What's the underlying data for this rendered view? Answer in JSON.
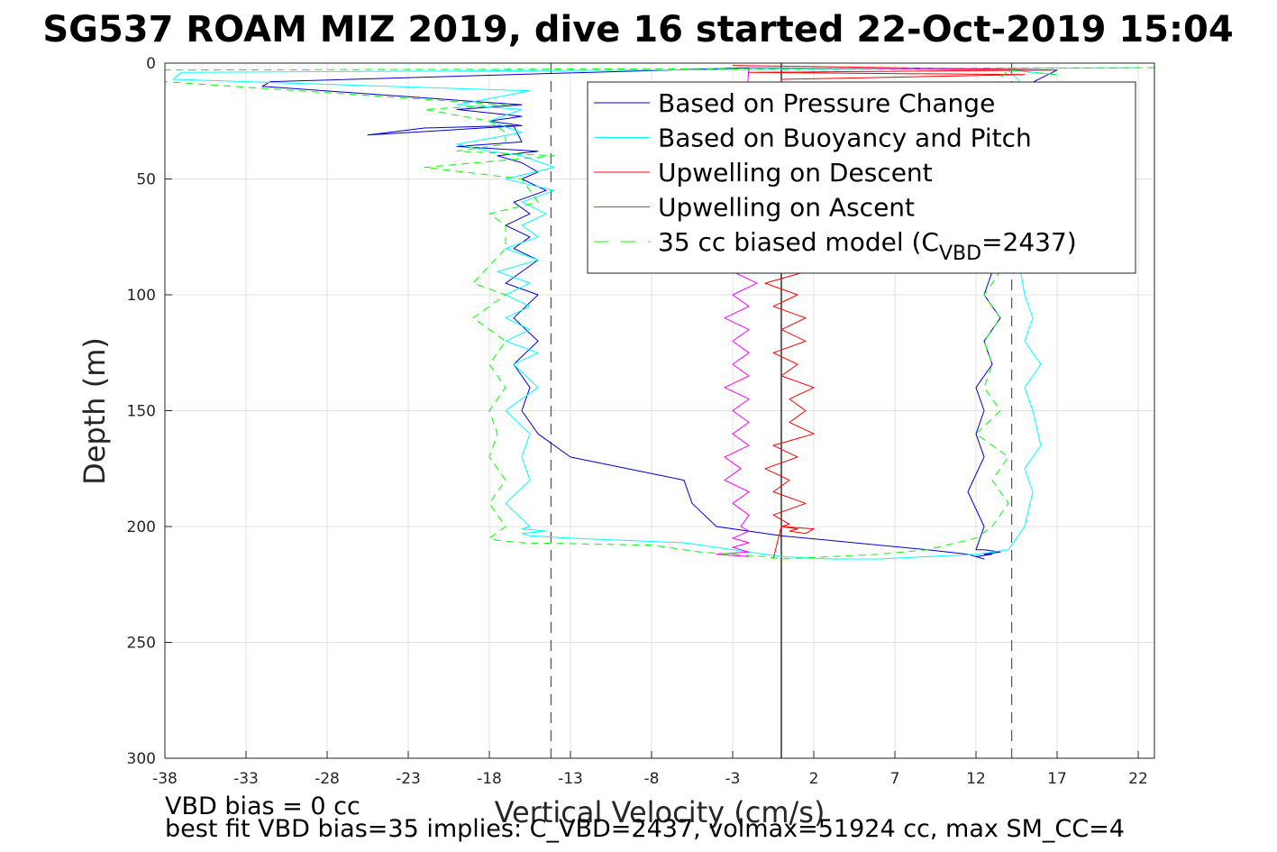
{
  "chart_data": {
    "type": "line",
    "title": "SG537 ROAM MIZ 2019, dive 16 started 22-Oct-2019 15:04",
    "xlabel": "Vertical Velocity (cm/s)",
    "ylabel": "Depth (m)",
    "xlim": [
      -38,
      23
    ],
    "ylim": [
      0,
      300
    ],
    "y_reversed": true,
    "grid": true,
    "x_ticks": [
      -38,
      -33,
      -28,
      -23,
      -18,
      -13,
      -8,
      -3,
      2,
      7,
      12,
      17,
      22
    ],
    "y_ticks": [
      0,
      50,
      100,
      150,
      200,
      250,
      300
    ],
    "reference_lines": [
      {
        "x": 0,
        "style": "solid",
        "color": "#000000"
      },
      {
        "x": -14.2,
        "style": "dashed",
        "color": "#555555"
      },
      {
        "x": 14.2,
        "style": "dashed",
        "color": "#555555"
      }
    ],
    "legend": {
      "placement": "top-right",
      "entries": [
        {
          "label": "Based on Pressure Change",
          "color": "#0000cc",
          "style": "solid"
        },
        {
          "label": "Based on Buoyancy and Pitch",
          "color": "#00ffff",
          "style": "solid"
        },
        {
          "label": "Upwelling on Descent",
          "color": "#ff0000",
          "style": "solid"
        },
        {
          "label": "Upwelling on Ascent",
          "color": "#ff00ff",
          "style": "solid"
        },
        {
          "label": "35 cc biased model (C",
          "sub": "VBD",
          "suffix": "=2437)",
          "color": "#00ff00",
          "style": "dashed"
        }
      ]
    },
    "series": [
      {
        "name": "Based on Pressure Change",
        "color": "#0000cc",
        "dash": "none",
        "x": [
          -2,
          -31.5,
          -32,
          -16,
          -20,
          -16,
          -18,
          -16,
          -25.5,
          -22,
          -16.5,
          -16,
          -20,
          -15,
          -17.5,
          -16,
          -15,
          -16,
          -14.5,
          -16.5,
          -15.5,
          -17,
          -15.5,
          -16.5,
          -15,
          -17,
          -15,
          -16.5,
          -15,
          -16.5,
          -15.5,
          -16,
          -15,
          -13,
          -6,
          -5.5,
          -4,
          -2,
          0,
          3,
          6,
          9,
          11.5,
          12.5,
          12,
          13,
          12.5,
          13.5,
          12.5,
          12,
          12.5,
          11.5,
          12.5,
          12,
          12.5,
          12,
          13,
          12.5,
          13.5,
          12.5,
          13,
          13,
          15,
          17
        ],
        "y": [
          2,
          8,
          10,
          18,
          20,
          23,
          25,
          27,
          31,
          28,
          27,
          34,
          36,
          38,
          40,
          43,
          47,
          50,
          55,
          60,
          65,
          70,
          75,
          80,
          85,
          95,
          100,
          110,
          120,
          130,
          140,
          150,
          160,
          170,
          180,
          190,
          200,
          202,
          204,
          206,
          208,
          210,
          212,
          214,
          213,
          212,
          212,
          211,
          210,
          210,
          200,
          185,
          170,
          160,
          150,
          140,
          130,
          120,
          110,
          100,
          90,
          80,
          10,
          3
        ]
      },
      {
        "name": "Based on Buoyancy and Pitch",
        "color": "#00ffff",
        "dash": "none",
        "x": [
          22,
          -37,
          -37.5,
          -15.5,
          -20,
          -16,
          -18,
          -16,
          -20,
          -18,
          -16,
          -14,
          -17,
          -14,
          -16,
          -14.5,
          -16,
          -15,
          -17,
          -15,
          -17.5,
          -15.5,
          -17,
          -15.5,
          -17,
          -15.5,
          -17,
          -15,
          -16.5,
          -15,
          -17,
          -15.5,
          -16,
          -15.5,
          -17,
          -15.5,
          -16,
          -14.5,
          -16,
          -15.5,
          -13,
          -6,
          -4,
          -2,
          0,
          3,
          6,
          9,
          12,
          13,
          14,
          15,
          15.5,
          15,
          16,
          15.5,
          15,
          16,
          15,
          15.5,
          15,
          14.5,
          15,
          14,
          17
        ],
        "y": [
          2,
          4,
          7,
          12,
          18,
          20,
          25,
          30,
          35,
          38,
          40,
          45,
          50,
          55,
          60,
          65,
          70,
          75,
          80,
          85,
          90,
          95,
          100,
          105,
          110,
          115,
          120,
          125,
          130,
          140,
          150,
          160,
          170,
          180,
          190,
          200,
          201,
          202,
          203,
          204,
          205,
          207,
          209,
          211,
          213,
          214,
          214,
          213,
          212,
          211,
          210,
          200,
          185,
          175,
          165,
          150,
          140,
          130,
          120,
          110,
          100,
          80,
          10,
          3,
          5
        ]
      },
      {
        "name": "Upwelling on Descent",
        "color": "#ff0000",
        "dash": "none",
        "x": [
          -3,
          17,
          -2,
          15,
          0,
          1.5,
          -1,
          1,
          -0.5,
          1.5,
          0,
          1.5,
          -0.5,
          1,
          0,
          2,
          0.5,
          1.5,
          0.5,
          2,
          -0.5,
          1,
          -1,
          0.5,
          -0.5,
          1.5,
          -0.5,
          0.5,
          0,
          1,
          0.5,
          1.5,
          2,
          0,
          -0.5
        ],
        "y": [
          1,
          3,
          4,
          5,
          7,
          90,
          95,
          100,
          105,
          110,
          115,
          120,
          125,
          130,
          135,
          140,
          145,
          150,
          155,
          160,
          165,
          170,
          175,
          180,
          185,
          190,
          195,
          199,
          200,
          201,
          202,
          203,
          201,
          200,
          214
        ]
      },
      {
        "name": "Upwelling on Ascent",
        "color": "#ff00ff",
        "dash": "none",
        "x": [
          16,
          -2,
          -3,
          -1.5,
          -3,
          -2,
          -3.5,
          -2,
          -3,
          -2,
          -3,
          -2,
          -3.5,
          -2,
          -3,
          -2,
          -3,
          -2,
          -3.5,
          -2.5,
          -3.5,
          -2,
          -3,
          -2,
          -2.5,
          -2,
          -3,
          -2,
          -3,
          -2,
          -4,
          -2
        ],
        "y": [
          3,
          2,
          90,
          95,
          100,
          105,
          110,
          115,
          120,
          125,
          130,
          135,
          140,
          145,
          150,
          155,
          160,
          165,
          170,
          175,
          180,
          185,
          190,
          195,
          200,
          202,
          205,
          207,
          209,
          211,
          212,
          213
        ]
      },
      {
        "name": "35 cc biased model (CVBD=2437)",
        "color": "#00ff00",
        "dash": "8,6",
        "x": [
          23,
          -38,
          -38,
          -17,
          -22,
          -18,
          -17,
          -17,
          -20,
          -14,
          -22,
          -16,
          -15,
          -18,
          -17,
          -17,
          -19,
          -17,
          -19,
          -17,
          -18,
          -17,
          -18,
          -17.5,
          -18,
          -17,
          -18,
          -17,
          -18,
          -17.5,
          -16,
          -8,
          -6,
          -5,
          -3,
          -1,
          0,
          3,
          6,
          9,
          12,
          13,
          14,
          13,
          14,
          12,
          13.5,
          12.5,
          13,
          12.5,
          13.5,
          12.5,
          13.5,
          12,
          13,
          14,
          17
        ],
        "y": [
          2,
          3,
          8,
          18,
          20,
          25,
          30,
          35,
          38,
          40,
          45,
          50,
          60,
          65,
          70,
          80,
          95,
          100,
          110,
          120,
          130,
          140,
          150,
          160,
          170,
          180,
          190,
          200,
          205,
          206,
          207,
          208,
          210,
          211,
          212,
          213,
          214,
          213,
          212,
          210,
          205,
          200,
          190,
          180,
          170,
          160,
          150,
          140,
          130,
          120,
          110,
          100,
          90,
          80,
          10,
          3,
          5
        ]
      }
    ]
  },
  "notes": {
    "line1": "VBD bias = 0 cc",
    "line2": "best fit VBD bias=35 implies: C_VBD=2437, volmax=51924 cc, max SM_CC=4"
  }
}
